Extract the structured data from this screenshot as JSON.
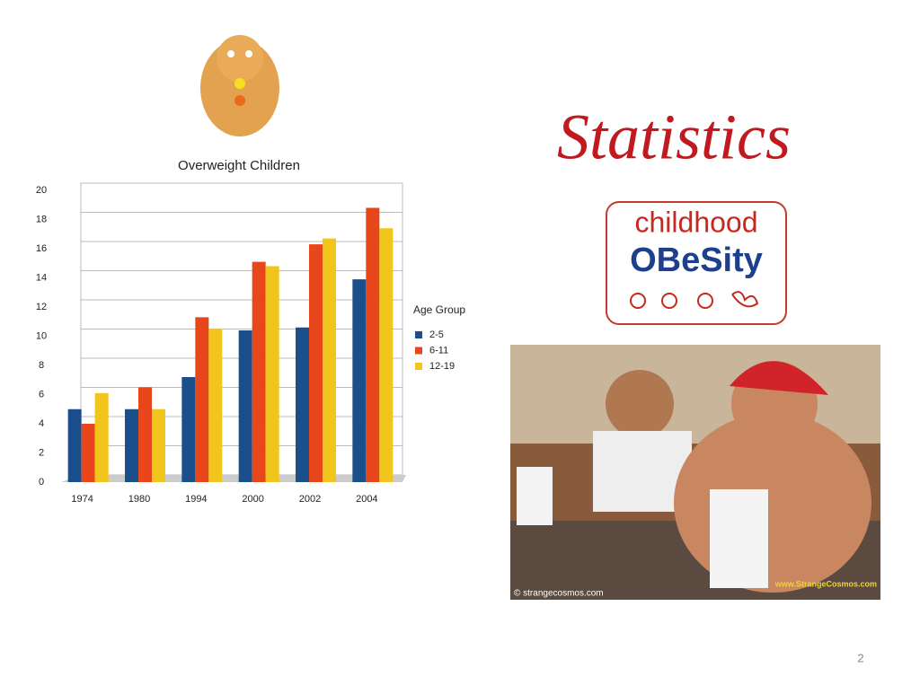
{
  "slide": {
    "title": "Statistics",
    "logo_line1": "childhood",
    "logo_line2": "OBeSity",
    "photo_credit": "© strangecosmos.com",
    "photo_watermark": "www.StrangeCosmos.com",
    "page_number": "2"
  },
  "chart_data": {
    "type": "bar",
    "title": "Overweight Children",
    "categories": [
      "1974",
      "1980",
      "1994",
      "2000",
      "2002",
      "2004"
    ],
    "legend_title": "Age Group",
    "series": [
      {
        "name": "2-5",
        "color": "#1b4f8c",
        "values": [
          5.0,
          5.0,
          7.2,
          10.4,
          10.6,
          13.9
        ]
      },
      {
        "name": "6-11",
        "color": "#e8461b",
        "values": [
          4.0,
          6.5,
          11.3,
          15.1,
          16.3,
          18.8
        ]
      },
      {
        "name": "12-19",
        "color": "#f2c51c",
        "values": [
          6.1,
          5.0,
          10.5,
          14.8,
          16.7,
          17.4
        ]
      }
    ],
    "ylim": [
      0,
      20
    ],
    "yticks": [
      0,
      2,
      4,
      6,
      8,
      10,
      12,
      14,
      16,
      18,
      20
    ],
    "grid": true,
    "legend": "right"
  }
}
